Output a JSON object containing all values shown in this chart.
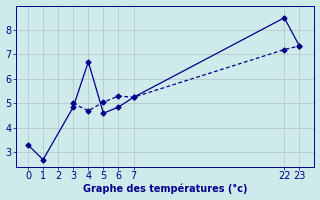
{
  "xlabel": "Graphe des températures (°c)",
  "background_color": "#ceeaea",
  "line_color": "#00008b",
  "grid_color": "#b0c4c4",
  "x_tick_labels": [
    "0",
    "1",
    "2",
    "3",
    "4",
    "5",
    "6",
    "7",
    "22",
    "23"
  ],
  "x_positions": [
    0,
    1,
    2,
    3,
    4,
    5,
    6,
    7,
    22,
    23
  ],
  "display_pos": [
    0,
    1,
    2,
    3,
    4,
    5,
    6,
    7,
    17,
    18
  ],
  "ylim": [
    2.4,
    9.0
  ],
  "yticks": [
    3,
    4,
    5,
    6,
    7,
    8
  ],
  "line1_real_x": [
    0,
    1,
    3,
    4,
    5,
    6,
    7,
    22,
    23
  ],
  "line1_y": [
    3.3,
    2.7,
    4.85,
    6.7,
    4.6,
    4.85,
    5.25,
    8.5,
    7.35
  ],
  "line2_real_x": [
    3,
    4,
    5,
    6,
    7,
    22,
    23
  ],
  "line2_y": [
    5.0,
    4.7,
    5.05,
    5.3,
    5.25,
    7.2,
    7.35
  ],
  "xlabel_fontsize": 7.0,
  "tick_fontsize": 7.0
}
